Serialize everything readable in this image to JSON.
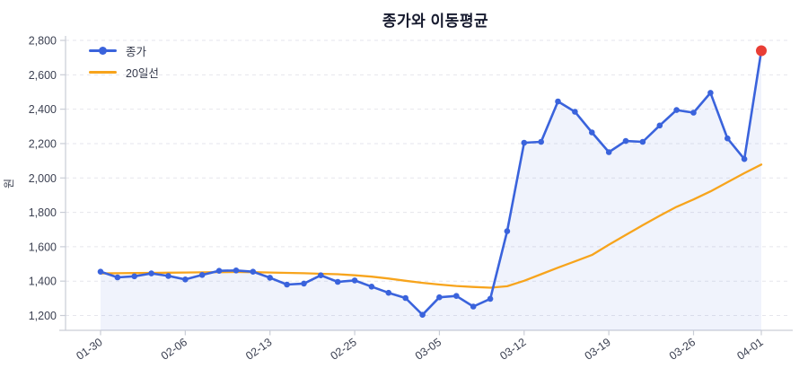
{
  "title": "종가와 이동평균",
  "y_axis": {
    "label": "원",
    "tick_values": [
      1200,
      1400,
      1600,
      1800,
      2000,
      2200,
      2400,
      2600,
      2800
    ],
    "tick_labels": [
      "1,200",
      "1,400",
      "1,600",
      "1,800",
      "2,000",
      "2,200",
      "2,400",
      "2,600",
      "2,800"
    ]
  },
  "x_axis": {
    "tick_labels": [
      "01-30",
      "02-06",
      "02-13",
      "02-25",
      "03-05",
      "03-12",
      "03-19",
      "03-26",
      "04-01"
    ],
    "tick_indices": [
      0,
      5,
      10,
      15,
      20,
      25,
      30,
      35,
      39
    ],
    "label_rotation_deg": -35
  },
  "legend": {
    "position": "top-left",
    "items": [
      {
        "label": "종가",
        "color": "#3A63DC",
        "marker": "line-with-dot"
      },
      {
        "label": "20일선",
        "color": "#F7A41C",
        "marker": "line"
      }
    ]
  },
  "colors": {
    "close_line": "#3A63DC",
    "ma_line": "#F7A41C",
    "highlight_dot": "#E93E35",
    "area_fill": "rgba(58,99,220,0.08)",
    "gridline": "#E6E6EC",
    "axis_line": "#C9CDD6",
    "tick_text": "#3C4152",
    "title_text": "#161A2E",
    "legend_text": "#33384A"
  },
  "chart_data": {
    "type": "line",
    "title": "종가와 이동평균",
    "xlabel": "",
    "ylabel": "원",
    "ylim": [
      1110,
      2840
    ],
    "grid": "horizontal-dashed",
    "legend_position": "top-left",
    "n_points": 40,
    "categories_shown": [
      "01-30",
      "02-06",
      "02-13",
      "02-25",
      "03-05",
      "03-12",
      "03-19",
      "03-26",
      "04-01"
    ],
    "category_tick_indices": [
      0,
      5,
      10,
      15,
      20,
      25,
      30,
      35,
      39
    ],
    "series": [
      {
        "name": "종가",
        "color": "#3A63DC",
        "markers": true,
        "area_fill": true,
        "values": [
          1455,
          1422,
          1428,
          1445,
          1430,
          1410,
          1436,
          1460,
          1462,
          1455,
          1420,
          1380,
          1386,
          1434,
          1396,
          1404,
          1368,
          1332,
          1302,
          1204,
          1306,
          1314,
          1252,
          1297,
          1690,
          2205,
          2210,
          2445,
          2385,
          2265,
          2150,
          2215,
          2210,
          2305,
          2395,
          2380,
          2495,
          2230,
          2110,
          2740
        ]
      },
      {
        "name": "20일선",
        "color": "#F7A41C",
        "markers": false,
        "area_fill": false,
        "values": [
          1445,
          1446,
          1447,
          1448,
          1449,
          1450,
          1451,
          1452,
          1453,
          1452,
          1450,
          1448,
          1446,
          1443,
          1440,
          1434,
          1426,
          1415,
          1402,
          1390,
          1380,
          1372,
          1366,
          1362,
          1370,
          1402,
          1440,
          1478,
          1515,
          1552,
          1612,
          1668,
          1725,
          1780,
          1832,
          1875,
          1922,
          1975,
          2028,
          2078
        ]
      }
    ],
    "highlight_last_point": {
      "series": "종가",
      "index": 39,
      "value": 2740,
      "color": "#E93E35"
    }
  }
}
